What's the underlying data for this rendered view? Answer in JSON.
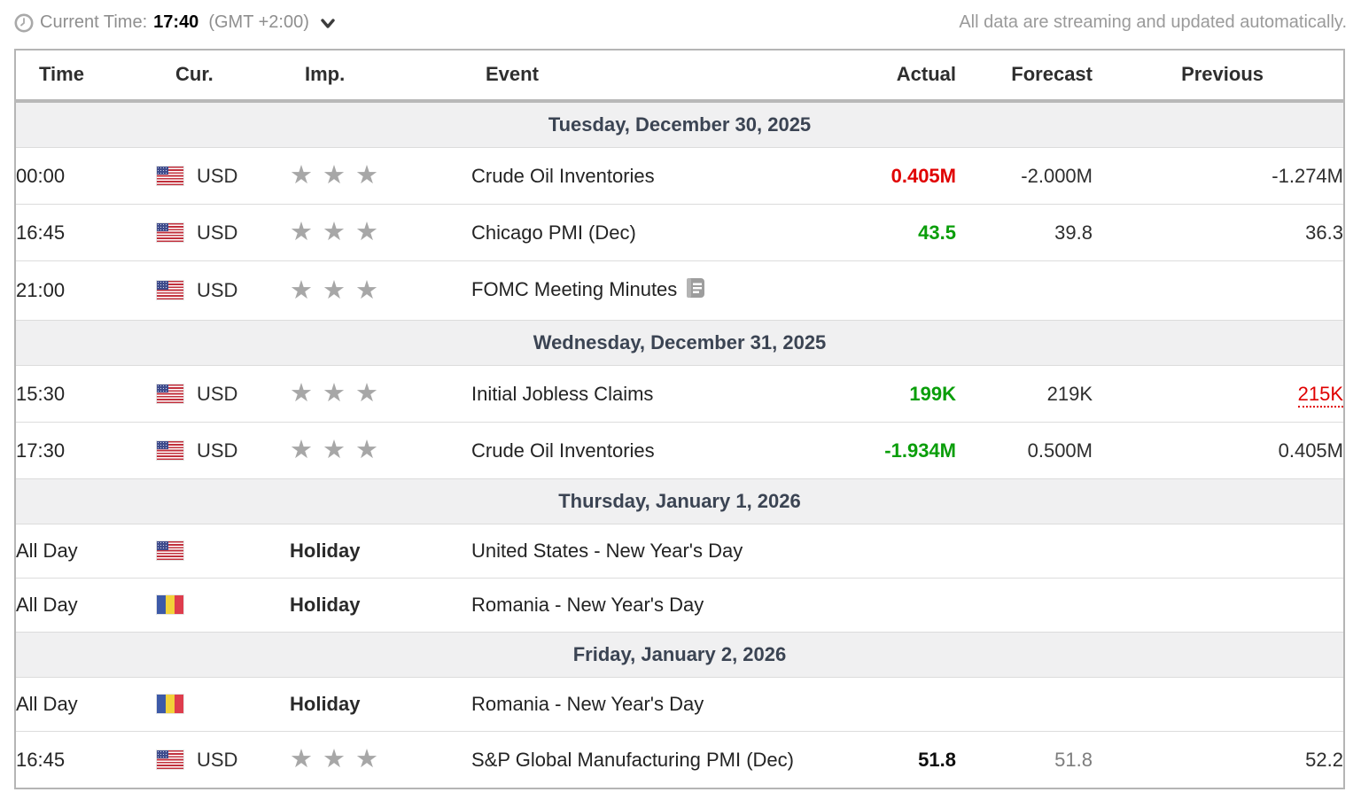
{
  "topbar": {
    "current_time_label": "Current Time:",
    "current_time_value": "17:40",
    "timezone": "(GMT +2:00)",
    "streaming_note": "All data are streaming and updated automatically."
  },
  "table": {
    "headers": [
      "Time",
      "Cur.",
      "Imp.",
      "Event",
      "Actual",
      "Forecast",
      "Previous"
    ]
  },
  "colors": {
    "actual_negative": "#e00000",
    "actual_positive": "#0a9e0a",
    "revised_previous": "#e00000",
    "day_header_text": "#3b4453",
    "day_header_bg": "#f0f0f1",
    "star": "#a7a7a7"
  },
  "icons": {
    "clock": "clock-icon",
    "chevron": "chevron-down-icon",
    "report": "report-document-icon",
    "star": "star-icon"
  },
  "sections": [
    {
      "date": "Tuesday, December 30, 2025",
      "rows": [
        {
          "time": "00:00",
          "flag": "us",
          "currency": "USD",
          "importance": 3,
          "event": "Crude Oil Inventories",
          "actual": "0.405M",
          "actual_style": "red",
          "forecast": "-2.000M",
          "previous": "-1.274M"
        },
        {
          "time": "16:45",
          "flag": "us",
          "currency": "USD",
          "importance": 3,
          "event": "Chicago PMI (Dec)",
          "actual": "43.5",
          "actual_style": "green",
          "forecast": "39.8",
          "previous": "36.3"
        },
        {
          "time": "21:00",
          "flag": "us",
          "currency": "USD",
          "importance": 3,
          "event": "FOMC Meeting Minutes",
          "has_report_icon": true,
          "actual": "",
          "forecast": "",
          "previous": ""
        }
      ]
    },
    {
      "date": "Wednesday, December 31, 2025",
      "rows": [
        {
          "time": "15:30",
          "flag": "us",
          "currency": "USD",
          "importance": 3,
          "event": "Initial Jobless Claims",
          "actual": "199K",
          "actual_style": "green",
          "forecast": "219K",
          "previous": "215K",
          "previous_style": "revised"
        },
        {
          "time": "17:30",
          "flag": "us",
          "currency": "USD",
          "importance": 3,
          "event": "Crude Oil Inventories",
          "actual": "-1.934M",
          "actual_style": "green",
          "forecast": "0.500M",
          "previous": "0.405M"
        }
      ]
    },
    {
      "date": "Thursday, January 1, 2026",
      "rows": [
        {
          "time": "All Day",
          "flag": "us",
          "holiday": true,
          "holiday_label": "Holiday",
          "event": "United States - New Year's Day",
          "actual": "",
          "forecast": "",
          "previous": ""
        },
        {
          "time": "All Day",
          "flag": "ro",
          "holiday": true,
          "holiday_label": "Holiday",
          "event": "Romania - New Year's Day",
          "actual": "",
          "forecast": "",
          "previous": ""
        }
      ]
    },
    {
      "date": "Friday, January 2, 2026",
      "rows": [
        {
          "time": "All Day",
          "flag": "ro",
          "holiday": true,
          "holiday_label": "Holiday",
          "event": "Romania - New Year's Day",
          "actual": "",
          "forecast": "",
          "previous": ""
        },
        {
          "time": "16:45",
          "flag": "us",
          "currency": "USD",
          "importance": 3,
          "event": "S&P Global Manufacturing PMI (Dec)",
          "actual": "51.8",
          "actual_style": "bold",
          "forecast": "51.8",
          "forecast_style": "muted",
          "previous": "52.2"
        }
      ]
    }
  ]
}
